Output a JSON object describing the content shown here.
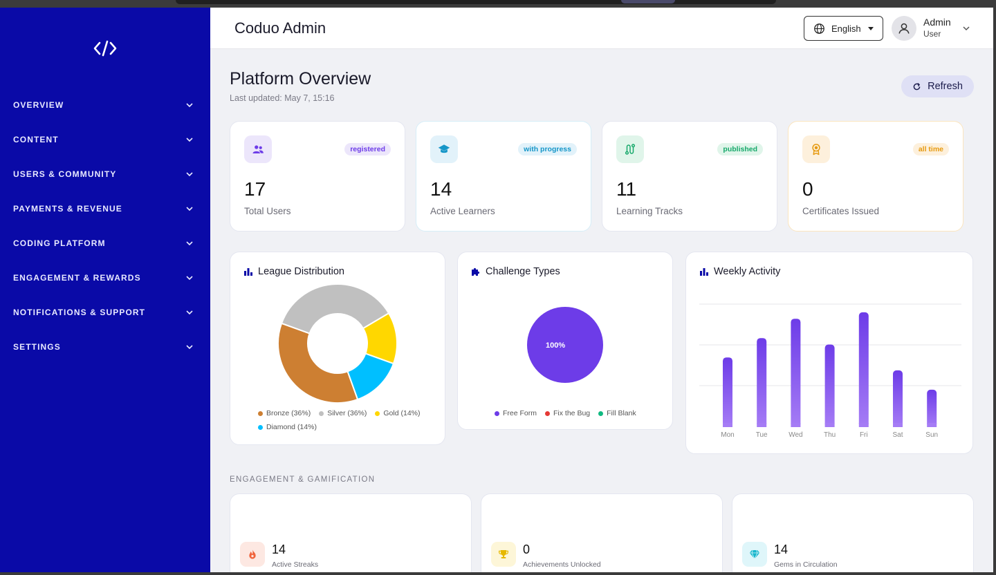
{
  "app": {
    "brand": "Coduo Admin"
  },
  "header": {
    "language": "English",
    "user_name": "Admin",
    "user_role": "User"
  },
  "sidebar": {
    "items": [
      {
        "label": "OVERVIEW"
      },
      {
        "label": "CONTENT"
      },
      {
        "label": "USERS & COMMUNITY"
      },
      {
        "label": "PAYMENTS & REVENUE"
      },
      {
        "label": "CODING PLATFORM"
      },
      {
        "label": "ENGAGEMENT & REWARDS"
      },
      {
        "label": "NOTIFICATIONS & SUPPORT"
      },
      {
        "label": "SETTINGS"
      }
    ]
  },
  "page": {
    "title": "Platform Overview",
    "updated": "Last updated: May 7, 15:16",
    "refresh_label": "Refresh"
  },
  "stats": [
    {
      "value": "17",
      "label": "Total Users",
      "badge": "registered",
      "icon": "users-icon",
      "color": "#6d3ce8",
      "bg": "#ece6fb",
      "badge_bg": "#ece6fb"
    },
    {
      "value": "14",
      "label": "Active Learners",
      "badge": "with progress",
      "icon": "graduation-cap-icon",
      "color": "#1596c8",
      "bg": "#e2f2fa",
      "badge_bg": "#e2f2fa"
    },
    {
      "value": "11",
      "label": "Learning Tracks",
      "badge": "published",
      "icon": "route-icon",
      "color": "#16a86a",
      "bg": "#e0f5ea",
      "badge_bg": "#e0f5ea"
    },
    {
      "value": "0",
      "label": "Certificates Issued",
      "badge": "all time",
      "icon": "award-icon",
      "color": "#e69a10",
      "bg": "#fdf0dc",
      "badge_bg": "#fdf0dc"
    }
  ],
  "charts_titles": {
    "league": "League Distribution",
    "challenge": "Challenge Types",
    "weekly": "Weekly Activity"
  },
  "chart_data": [
    {
      "type": "pie",
      "title": "League Distribution",
      "categories": [
        "Bronze (36%)",
        "Silver (36%)",
        "Gold (14%)",
        "Diamond (14%)"
      ],
      "values": [
        36,
        36,
        14,
        14
      ],
      "colors": [
        "#cd7f32",
        "#c0c0c0",
        "#ffd700",
        "#00bfff"
      ]
    },
    {
      "type": "pie",
      "title": "Challenge Types",
      "categories": [
        "Free Form",
        "Fix the Bug",
        "Fill Blank"
      ],
      "values": [
        100,
        0,
        0
      ],
      "colors": [
        "#6d3ce8",
        "#e53935",
        "#10b981"
      ],
      "data_label": "100%"
    },
    {
      "type": "bar",
      "title": "Weekly Activity",
      "categories": [
        "Mon",
        "Tue",
        "Wed",
        "Thu",
        "Fri",
        "Sat",
        "Sun"
      ],
      "values": [
        54,
        69,
        84,
        64,
        89,
        44,
        29
      ],
      "ylim": [
        0,
        105
      ],
      "grid": true
    }
  ],
  "engagement": {
    "section_label": "ENGAGEMENT & GAMIFICATION",
    "cards": [
      {
        "value": "14",
        "label": "Active Streaks",
        "icon": "flame-icon",
        "color": "#f0643c",
        "bg": "#fde8e2"
      },
      {
        "value": "0",
        "label": "Achievements Unlocked",
        "icon": "trophy-icon",
        "color": "#e6b800",
        "bg": "#fdf6d8"
      },
      {
        "value": "14",
        "label": "Gems in Circulation",
        "icon": "gem-icon",
        "color": "#18b6cc",
        "bg": "#dff6fa"
      }
    ]
  }
}
